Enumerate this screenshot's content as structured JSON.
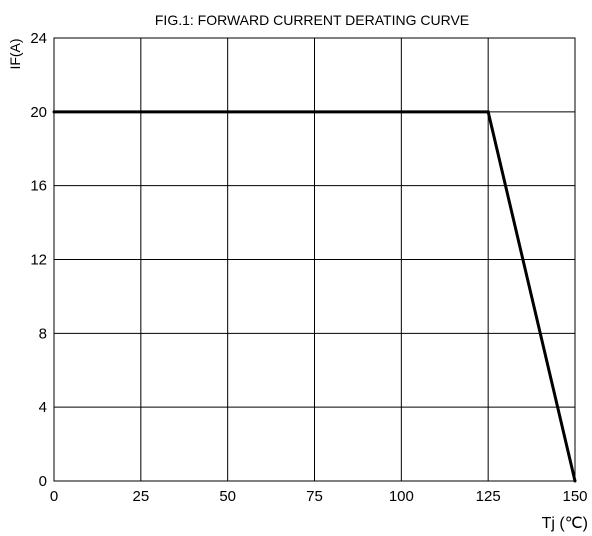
{
  "chart_data": {
    "type": "line",
    "title": "FIG.1: FORWARD CURRENT  DERATING CURVE",
    "ylabel": "IF(A)",
    "xlabel": "Tj (℃)",
    "xlim": [
      0,
      150
    ],
    "ylim": [
      0,
      24
    ],
    "xticks": [
      0,
      25,
      50,
      75,
      100,
      125,
      150
    ],
    "yticks": [
      0,
      4,
      8,
      12,
      16,
      20,
      24
    ],
    "grid": true,
    "series": [
      {
        "x": [
          0,
          125,
          150
        ],
        "y": [
          20,
          20,
          0
        ]
      }
    ]
  }
}
